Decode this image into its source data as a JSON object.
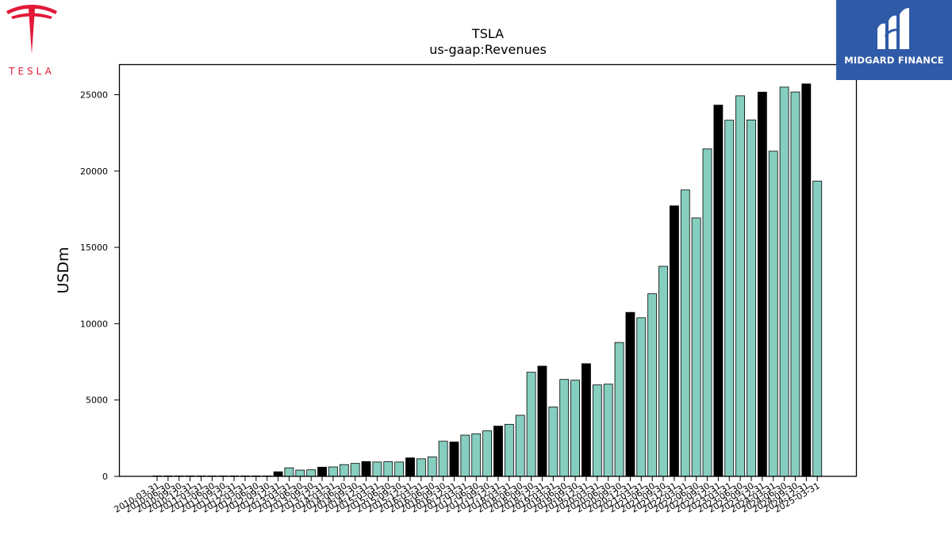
{
  "branding": {
    "company_word": "TESLA",
    "company_logo_icon": "tesla-t-logo",
    "company_color": "#e31937",
    "publisher_name": "MIDGARD FINANCE",
    "publisher_logo_icon": "midgard-m-logo",
    "publisher_bg_color": "#2f5aa8"
  },
  "chart_data": {
    "type": "bar",
    "title": "TSLA",
    "subtitle": "us-gaap:Revenues",
    "xlabel": "",
    "ylabel": "USDm",
    "ylim": [
      0,
      27000
    ],
    "yticks": [
      0,
      5000,
      10000,
      15000,
      20000,
      25000
    ],
    "legend": "none",
    "grid": false,
    "colors": {
      "quarterly": "#86cec0",
      "annual": "#000000"
    },
    "categories": [
      "2010-03-31",
      "2010-06-30",
      "2010-09-30",
      "2010-12-31",
      "2011-03-31",
      "2011-06-30",
      "2011-09-30",
      "2011-12-31",
      "2012-03-31",
      "2012-06-30",
      "2012-09-30",
      "2012-12-31",
      "2013-03-31",
      "2013-06-30",
      "2013-09-30",
      "2013-12-31",
      "2014-03-31",
      "2014-06-30",
      "2014-09-30",
      "2014-12-31",
      "2015-03-31",
      "2015-06-30",
      "2015-09-30",
      "2015-12-31",
      "2016-03-31",
      "2016-06-30",
      "2016-09-30",
      "2016-12-31",
      "2017-03-31",
      "2017-06-30",
      "2017-09-30",
      "2017-12-31",
      "2018-03-31",
      "2018-06-30",
      "2018-09-30",
      "2018-12-31",
      "2019-03-31",
      "2019-06-30",
      "2019-09-30",
      "2019-12-31",
      "2020-03-31",
      "2020-06-30",
      "2020-09-30",
      "2020-12-31",
      "2021-03-31",
      "2021-06-30",
      "2021-09-30",
      "2021-12-31",
      "2022-03-31",
      "2022-06-30",
      "2022-09-30",
      "2022-12-31",
      "2023-03-31",
      "2023-06-30",
      "2023-09-30",
      "2023-12-31",
      "2024-03-31",
      "2024-06-30",
      "2024-09-30",
      "2024-12-31",
      "2025-03-31"
    ],
    "values": [
      0,
      0,
      0,
      0,
      0,
      0,
      0,
      0,
      0,
      0,
      0,
      300,
      560,
      410,
      430,
      600,
      620,
      770,
      850,
      970,
      940,
      960,
      940,
      1210,
      1150,
      1270,
      2300,
      2250,
      2700,
      2790,
      2980,
      3290,
      3410,
      4000,
      6820,
      7220,
      4540,
      6350,
      6300,
      7380,
      5990,
      6040,
      8770,
      10740,
      10390,
      11960,
      13760,
      17720,
      18760,
      16930,
      21450,
      24320,
      23330,
      24930,
      23350,
      25170,
      21300,
      25500,
      25180,
      25710,
      19340
    ],
    "annual_flags": [
      0,
      0,
      0,
      0,
      0,
      0,
      0,
      0,
      0,
      0,
      0,
      1,
      0,
      0,
      0,
      1,
      0,
      0,
      0,
      1,
      0,
      0,
      0,
      1,
      0,
      0,
      0,
      1,
      0,
      0,
      0,
      1,
      0,
      0,
      0,
      1,
      0,
      0,
      0,
      1,
      0,
      0,
      0,
      1,
      0,
      0,
      0,
      1,
      0,
      0,
      0,
      1,
      0,
      0,
      0,
      1,
      0,
      0,
      0,
      1,
      0
    ]
  }
}
